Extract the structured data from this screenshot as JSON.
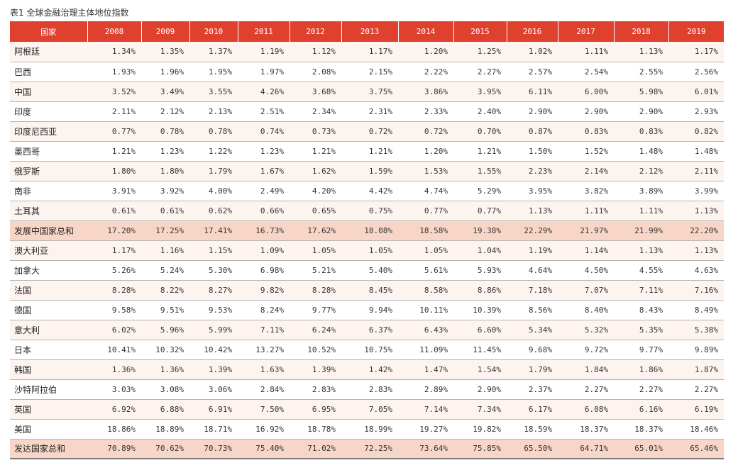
{
  "caption": "表1 全球金融治理主体地位指数",
  "header": {
    "country_label": "国家",
    "years": [
      "2008",
      "2009",
      "2010",
      "2011",
      "2012",
      "2013",
      "2014",
      "2015",
      "2016",
      "2017",
      "2018",
      "2019"
    ]
  },
  "rows": [
    {
      "name": "阿根廷",
      "values": [
        "1.34%",
        "1.35%",
        "1.37%",
        "1.19%",
        "1.12%",
        "1.17%",
        "1.20%",
        "1.25%",
        "1.02%",
        "1.11%",
        "1.13%",
        "1.17%"
      ]
    },
    {
      "name": "巴西",
      "values": [
        "1.93%",
        "1.96%",
        "1.95%",
        "1.97%",
        "2.08%",
        "2.15%",
        "2.22%",
        "2.27%",
        "2.57%",
        "2.54%",
        "2.55%",
        "2.56%"
      ]
    },
    {
      "name": "中国",
      "values": [
        "3.52%",
        "3.49%",
        "3.55%",
        "4.26%",
        "3.68%",
        "3.75%",
        "3.86%",
        "3.95%",
        "6.11%",
        "6.00%",
        "5.98%",
        "6.01%"
      ]
    },
    {
      "name": "印度",
      "values": [
        "2.11%",
        "2.12%",
        "2.13%",
        "2.51%",
        "2.34%",
        "2.31%",
        "2.33%",
        "2.40%",
        "2.90%",
        "2.90%",
        "2.90%",
        "2.93%"
      ]
    },
    {
      "name": "印度尼西亚",
      "values": [
        "0.77%",
        "0.78%",
        "0.78%",
        "0.74%",
        "0.73%",
        "0.72%",
        "0.72%",
        "0.70%",
        "0.87%",
        "0.83%",
        "0.83%",
        "0.82%"
      ]
    },
    {
      "name": "墨西哥",
      "values": [
        "1.21%",
        "1.23%",
        "1.22%",
        "1.23%",
        "1.21%",
        "1.21%",
        "1.20%",
        "1.21%",
        "1.50%",
        "1.52%",
        "1.48%",
        "1.48%"
      ]
    },
    {
      "name": "俄罗斯",
      "values": [
        "1.80%",
        "1.80%",
        "1.79%",
        "1.67%",
        "1.62%",
        "1.59%",
        "1.53%",
        "1.55%",
        "2.23%",
        "2.14%",
        "2.12%",
        "2.11%"
      ]
    },
    {
      "name": "南非",
      "values": [
        "3.91%",
        "3.92%",
        "4.00%",
        "2.49%",
        "4.20%",
        "4.42%",
        "4.74%",
        "5.29%",
        "3.95%",
        "3.82%",
        "3.89%",
        "3.99%"
      ]
    },
    {
      "name": "土耳其",
      "values": [
        "0.61%",
        "0.61%",
        "0.62%",
        "0.66%",
        "0.65%",
        "0.75%",
        "0.77%",
        "0.77%",
        "1.13%",
        "1.11%",
        "1.11%",
        "1.13%"
      ]
    },
    {
      "name": "发展中国家总和",
      "total": true,
      "values": [
        "17.20%",
        "17.25%",
        "17.41%",
        "16.73%",
        "17.62%",
        "18.08%",
        "18.58%",
        "19.38%",
        "22.29%",
        "21.97%",
        "21.99%",
        "22.20%"
      ]
    },
    {
      "name": "澳大利亚",
      "values": [
        "1.17%",
        "1.16%",
        "1.15%",
        "1.09%",
        "1.05%",
        "1.05%",
        "1.05%",
        "1.04%",
        "1.19%",
        "1.14%",
        "1.13%",
        "1.13%"
      ]
    },
    {
      "name": "加拿大",
      "values": [
        "5.26%",
        "5.24%",
        "5.30%",
        "6.98%",
        "5.21%",
        "5.40%",
        "5.61%",
        "5.93%",
        "4.64%",
        "4.50%",
        "4.55%",
        "4.63%"
      ]
    },
    {
      "name": "法国",
      "values": [
        "8.28%",
        "8.22%",
        "8.27%",
        "9.82%",
        "8.28%",
        "8.45%",
        "8.58%",
        "8.86%",
        "7.18%",
        "7.07%",
        "7.11%",
        "7.16%"
      ]
    },
    {
      "name": "德国",
      "values": [
        "9.58%",
        "9.51%",
        "9.53%",
        "8.24%",
        "9.77%",
        "9.94%",
        "10.11%",
        "10.39%",
        "8.56%",
        "8.40%",
        "8.43%",
        "8.49%"
      ]
    },
    {
      "name": "意大利",
      "values": [
        "6.02%",
        "5.96%",
        "5.99%",
        "7.11%",
        "6.24%",
        "6.37%",
        "6.43%",
        "6.60%",
        "5.34%",
        "5.32%",
        "5.35%",
        "5.38%"
      ]
    },
    {
      "name": "日本",
      "values": [
        "10.41%",
        "10.32%",
        "10.42%",
        "13.27%",
        "10.52%",
        "10.75%",
        "11.09%",
        "11.45%",
        "9.68%",
        "9.72%",
        "9.77%",
        "9.89%"
      ]
    },
    {
      "name": "韩国",
      "values": [
        "1.36%",
        "1.36%",
        "1.39%",
        "1.63%",
        "1.39%",
        "1.42%",
        "1.47%",
        "1.54%",
        "1.79%",
        "1.84%",
        "1.86%",
        "1.87%"
      ]
    },
    {
      "name": "沙特阿拉伯",
      "values": [
        "3.03%",
        "3.08%",
        "3.06%",
        "2.84%",
        "2.83%",
        "2.83%",
        "2.89%",
        "2.90%",
        "2.37%",
        "2.27%",
        "2.27%",
        "2.27%"
      ]
    },
    {
      "name": "英国",
      "values": [
        "6.92%",
        "6.88%",
        "6.91%",
        "7.50%",
        "6.95%",
        "7.05%",
        "7.14%",
        "7.34%",
        "6.17%",
        "6.08%",
        "6.16%",
        "6.19%"
      ]
    },
    {
      "name": "美国",
      "values": [
        "18.86%",
        "18.89%",
        "18.71%",
        "16.92%",
        "18.78%",
        "18.99%",
        "19.27%",
        "19.82%",
        "18.59%",
        "18.37%",
        "18.37%",
        "18.46%"
      ]
    },
    {
      "name": "发达国家总和",
      "total": true,
      "values": [
        "70.89%",
        "70.62%",
        "70.73%",
        "75.40%",
        "71.02%",
        "72.25%",
        "73.64%",
        "75.85%",
        "65.50%",
        "64.71%",
        "65.01%",
        "65.46%"
      ]
    }
  ]
}
